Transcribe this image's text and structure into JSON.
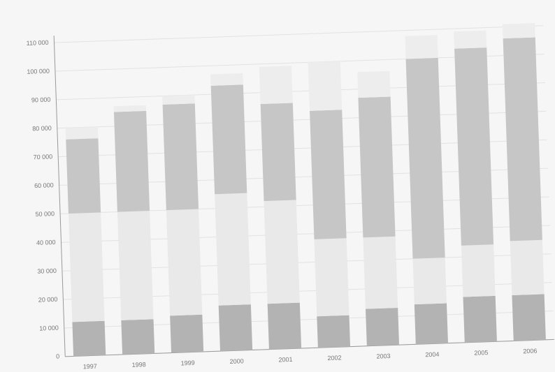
{
  "chart_data": {
    "type": "stacked_bar",
    "categories": [
      "1997",
      "1998",
      "1999",
      "2000",
      "2001",
      "2002",
      "2003",
      "2004",
      "2005",
      "2006"
    ],
    "series": [
      {
        "color": "#b3b3b3",
        "values": [
          12000,
          12000,
          13000,
          16000,
          16000,
          11000,
          13000,
          14000,
          16000,
          16000
        ]
      },
      {
        "color": "#e9e9e9",
        "values": [
          38000,
          38000,
          37000,
          39000,
          36000,
          27000,
          25000,
          16000,
          18000,
          19000
        ]
      },
      {
        "color": "#c6c6c6",
        "values": [
          26000,
          35000,
          37000,
          38000,
          34000,
          45000,
          49000,
          70000,
          69000,
          71000
        ]
      },
      {
        "color": "#ededed",
        "values": [
          4000,
          2000,
          3000,
          4000,
          13000,
          17000,
          9000,
          8000,
          6000,
          5000
        ]
      }
    ],
    "ylim": [
      0,
      110000
    ],
    "yticks": [
      0,
      {
        "value": 10000,
        "label": "10 000"
      },
      {
        "value": 20000,
        "label": "20 000"
      },
      {
        "value": 30000,
        "label": "30 000"
      },
      {
        "value": 40000,
        "label": "40 000"
      },
      {
        "value": 50000,
        "label": "50 000"
      },
      {
        "value": 60000,
        "label": "60 000"
      },
      {
        "value": 70000,
        "label": "70 000"
      },
      {
        "value": 80000,
        "label": "80 000"
      },
      {
        "value": 90000,
        "label": "90 000"
      },
      {
        "value": 100000,
        "label": "100 000"
      },
      {
        "value": 110000,
        "label": "110 000"
      }
    ],
    "grid": true
  }
}
